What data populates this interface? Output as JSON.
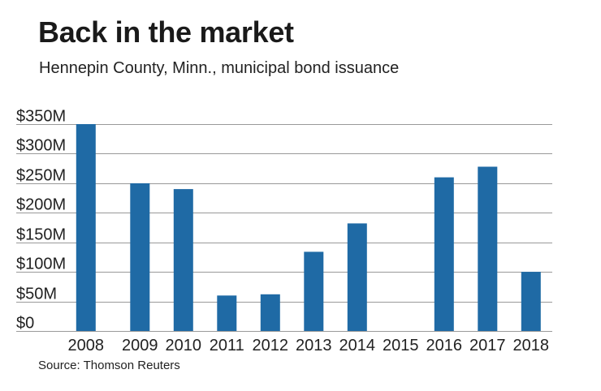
{
  "title": "Back in the market",
  "subtitle": "Hennepin County, Minn., municipal bond issuance",
  "source": "Source: Thomson Reuters",
  "colors": {
    "bar": "#1f6aa5",
    "grid": "#999999",
    "text": "#222222"
  },
  "chart_data": {
    "type": "bar",
    "title": "Back in the market",
    "subtitle": "Hennepin County, Minn., municipal bond issuance",
    "xlabel": "",
    "ylabel": "",
    "categories": [
      "2008",
      "2009",
      "2010",
      "2011",
      "2012",
      "2013",
      "2014",
      "2015",
      "2016",
      "2017",
      "2018"
    ],
    "values": [
      350,
      250,
      240,
      60,
      62,
      134,
      182,
      0,
      260,
      278,
      100
    ],
    "units": "millions USD",
    "ylim": [
      0,
      350
    ],
    "yticks": [
      0,
      50,
      100,
      150,
      200,
      250,
      300,
      350
    ],
    "ytick_labels": [
      "$0",
      "$50M",
      "$100M",
      "$150M",
      "$200M",
      "$250M",
      "$300M",
      "$350M"
    ],
    "grid": true,
    "legend": "none"
  }
}
